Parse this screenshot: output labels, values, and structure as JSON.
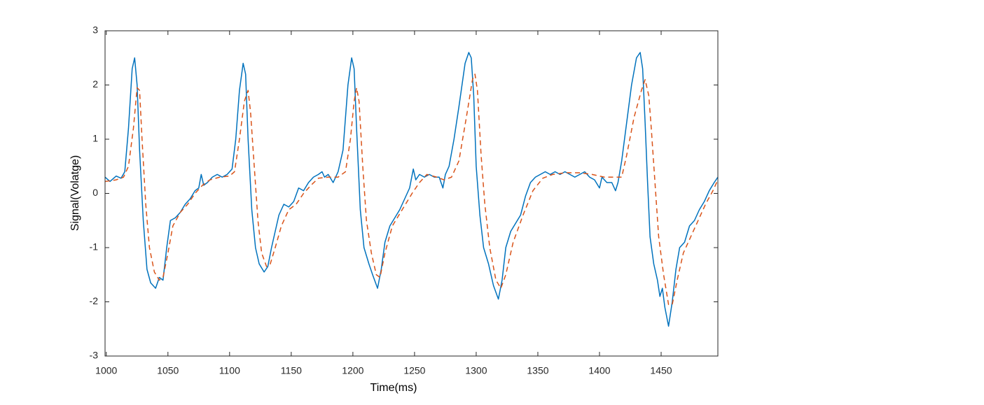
{
  "chart_data": {
    "type": "line",
    "x_label": "Time(ms)",
    "y_label": "Signal(Volatge)",
    "xlim": [
      999,
      1496
    ],
    "ylim": [
      -3,
      3
    ],
    "xticks": [
      1000,
      1050,
      1100,
      1150,
      1200,
      1250,
      1300,
      1350,
      1400,
      1450
    ],
    "yticks": [
      -3,
      -2,
      -1,
      0,
      1,
      2,
      3
    ],
    "grid": false,
    "series": [
      {
        "color": "#0072BD",
        "style": "solid",
        "x": [
          999,
          1003,
          1008,
          1012,
          1015,
          1018,
          1021,
          1023,
          1025,
          1027,
          1030,
          1033,
          1036,
          1040,
          1043,
          1046,
          1049,
          1052,
          1056,
          1060,
          1064,
          1068,
          1072,
          1075,
          1077,
          1079,
          1082,
          1086,
          1090,
          1094,
          1098,
          1102,
          1105,
          1108,
          1111,
          1113,
          1115,
          1118,
          1121,
          1124,
          1128,
          1131,
          1134,
          1137,
          1140,
          1144,
          1148,
          1152,
          1156,
          1160,
          1164,
          1168,
          1172,
          1175,
          1177,
          1180,
          1184,
          1188,
          1192,
          1196,
          1199,
          1201,
          1203,
          1206,
          1209,
          1213,
          1216,
          1220,
          1223,
          1226,
          1230,
          1234,
          1238,
          1242,
          1246,
          1249,
          1251,
          1254,
          1258,
          1262,
          1266,
          1270,
          1273,
          1275,
          1278,
          1282,
          1286,
          1291,
          1294,
          1296,
          1298,
          1300,
          1303,
          1306,
          1310,
          1314,
          1318,
          1321,
          1324,
          1328,
          1332,
          1336,
          1340,
          1344,
          1348,
          1352,
          1356,
          1360,
          1364,
          1368,
          1372,
          1376,
          1380,
          1384,
          1388,
          1392,
          1396,
          1400,
          1402,
          1406,
          1410,
          1413,
          1415,
          1418,
          1422,
          1426,
          1430,
          1433,
          1435,
          1437,
          1439,
          1441,
          1444,
          1447,
          1449,
          1451,
          1453,
          1456,
          1459,
          1462,
          1465,
          1469,
          1473,
          1477,
          1481,
          1485,
          1489,
          1493,
          1496
        ],
        "values": [
          0.3,
          0.22,
          0.32,
          0.28,
          0.4,
          1.2,
          2.3,
          2.5,
          2.0,
          0.8,
          -0.5,
          -1.4,
          -1.65,
          -1.75,
          -1.55,
          -1.6,
          -1.0,
          -0.5,
          -0.45,
          -0.35,
          -0.2,
          -0.1,
          0.05,
          0.1,
          0.35,
          0.15,
          0.2,
          0.3,
          0.35,
          0.3,
          0.35,
          0.45,
          1.0,
          1.9,
          2.4,
          2.2,
          1.0,
          -0.3,
          -1.0,
          -1.3,
          -1.45,
          -1.35,
          -1.0,
          -0.7,
          -0.4,
          -0.2,
          -0.25,
          -0.15,
          0.1,
          0.05,
          0.2,
          0.3,
          0.35,
          0.4,
          0.3,
          0.35,
          0.2,
          0.4,
          0.8,
          2.0,
          2.5,
          2.3,
          1.2,
          -0.3,
          -1.0,
          -1.3,
          -1.5,
          -1.75,
          -1.4,
          -0.9,
          -0.6,
          -0.45,
          -0.3,
          -0.1,
          0.1,
          0.45,
          0.25,
          0.35,
          0.3,
          0.35,
          0.3,
          0.3,
          0.1,
          0.35,
          0.5,
          1.0,
          1.6,
          2.4,
          2.6,
          2.5,
          1.8,
          0.5,
          -0.4,
          -1.0,
          -1.3,
          -1.7,
          -1.95,
          -1.6,
          -1.0,
          -0.7,
          -0.55,
          -0.4,
          -0.05,
          0.2,
          0.3,
          0.35,
          0.4,
          0.35,
          0.4,
          0.35,
          0.4,
          0.35,
          0.3,
          0.35,
          0.4,
          0.3,
          0.25,
          0.1,
          0.3,
          0.2,
          0.2,
          0.05,
          0.2,
          0.6,
          1.3,
          2.0,
          2.5,
          2.6,
          2.3,
          1.3,
          0.2,
          -0.8,
          -1.3,
          -1.6,
          -1.9,
          -1.75,
          -2.1,
          -2.45,
          -2.0,
          -1.4,
          -1.0,
          -0.9,
          -0.6,
          -0.5,
          -0.3,
          -0.15,
          0.05,
          0.2,
          0.3
        ]
      },
      {
        "color": "#D95319",
        "style": "dashed",
        "x": [
          999,
          1008,
          1014,
          1018,
          1022,
          1025,
          1027,
          1029,
          1032,
          1035,
          1039,
          1043,
          1046,
          1050,
          1054,
          1060,
          1066,
          1072,
          1078,
          1084,
          1092,
          1100,
          1104,
          1108,
          1112,
          1115,
          1117,
          1120,
          1123,
          1126,
          1130,
          1133,
          1137,
          1142,
          1148,
          1154,
          1160,
          1166,
          1172,
          1180,
          1188,
          1194,
          1198,
          1201,
          1203,
          1205,
          1208,
          1211,
          1215,
          1219,
          1222,
          1226,
          1232,
          1240,
          1248,
          1254,
          1260,
          1268,
          1274,
          1280,
          1286,
          1292,
          1297,
          1299,
          1301,
          1304,
          1307,
          1311,
          1316,
          1320,
          1324,
          1330,
          1338,
          1346,
          1354,
          1362,
          1372,
          1384,
          1394,
          1404,
          1412,
          1418,
          1422,
          1428,
          1434,
          1437,
          1440,
          1442,
          1445,
          1448,
          1452,
          1456,
          1459,
          1463,
          1468,
          1474,
          1480,
          1486,
          1492,
          1496
        ],
        "values": [
          0.22,
          0.25,
          0.3,
          0.5,
          1.2,
          1.95,
          1.9,
          1.0,
          -0.2,
          -1.0,
          -1.45,
          -1.6,
          -1.55,
          -1.1,
          -0.6,
          -0.35,
          -0.2,
          0.0,
          0.15,
          0.25,
          0.3,
          0.32,
          0.4,
          1.0,
          1.7,
          1.9,
          1.5,
          0.5,
          -0.5,
          -1.1,
          -1.35,
          -1.3,
          -1.0,
          -0.6,
          -0.3,
          -0.2,
          0.0,
          0.15,
          0.28,
          0.3,
          0.3,
          0.4,
          1.0,
          1.7,
          1.95,
          1.7,
          0.5,
          -0.5,
          -1.1,
          -1.5,
          -1.55,
          -1.1,
          -0.6,
          -0.3,
          0.0,
          0.2,
          0.35,
          0.3,
          0.25,
          0.3,
          0.6,
          1.4,
          2.1,
          2.2,
          1.9,
          0.7,
          -0.2,
          -1.0,
          -1.6,
          -1.75,
          -1.5,
          -0.9,
          -0.4,
          0.05,
          0.28,
          0.35,
          0.38,
          0.38,
          0.35,
          0.3,
          0.3,
          0.3,
          0.7,
          1.4,
          1.9,
          2.1,
          1.8,
          1.2,
          0.2,
          -0.8,
          -1.5,
          -2.05,
          -2.05,
          -1.6,
          -1.1,
          -0.8,
          -0.5,
          -0.2,
          0.05,
          0.25
        ]
      }
    ]
  }
}
